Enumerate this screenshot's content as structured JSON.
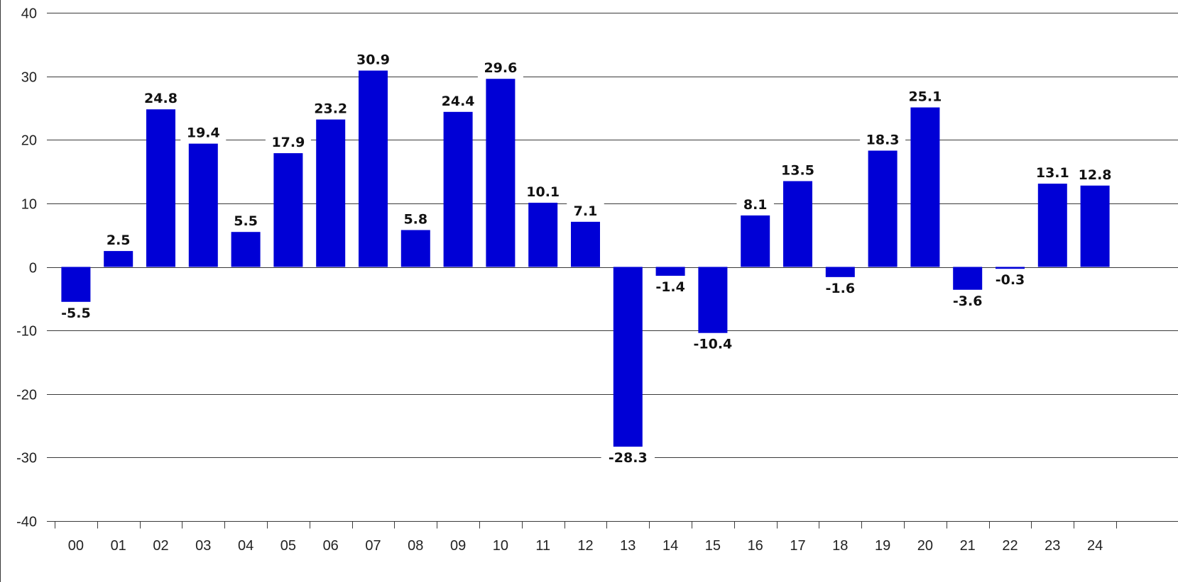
{
  "chart_data": {
    "type": "bar",
    "title": "",
    "xlabel": "",
    "ylabel": "",
    "categories": [
      "00",
      "01",
      "02",
      "03",
      "04",
      "05",
      "06",
      "07",
      "08",
      "09",
      "10",
      "11",
      "12",
      "13",
      "14",
      "15",
      "16",
      "17",
      "18",
      "19",
      "20",
      "21",
      "22",
      "23",
      "24"
    ],
    "values": [
      -5.5,
      2.5,
      24.8,
      19.4,
      5.5,
      17.9,
      23.2,
      30.9,
      5.8,
      24.4,
      29.6,
      10.1,
      7.1,
      -28.3,
      -1.4,
      -10.4,
      8.1,
      13.5,
      -1.6,
      18.3,
      25.1,
      -3.6,
      -0.3,
      13.1,
      12.8
    ],
    "data_labels": [
      "-5.5",
      "2.5",
      "24.8",
      "19.4",
      "5.5",
      "17.9",
      "23.2",
      "30.9",
      "5.8",
      "24.4",
      "29.6",
      "10.1",
      "7.1",
      "-28.3",
      "-1.4",
      "-10.4",
      "8.1",
      "13.5",
      "-1.6",
      "18.3",
      "25.1",
      "-3.6",
      "-0.3",
      "13.1",
      "12.8"
    ],
    "ylim": [
      -40,
      40
    ],
    "yticks": [
      40,
      30,
      20,
      10,
      0,
      -10,
      -20,
      -30,
      -40
    ],
    "ytick_labels": [
      "40",
      "30",
      "20",
      "10",
      "0",
      "-10",
      "-20",
      "-30",
      "-40"
    ],
    "grid": true,
    "legend": "none",
    "bar_color": "#0000d6"
  }
}
